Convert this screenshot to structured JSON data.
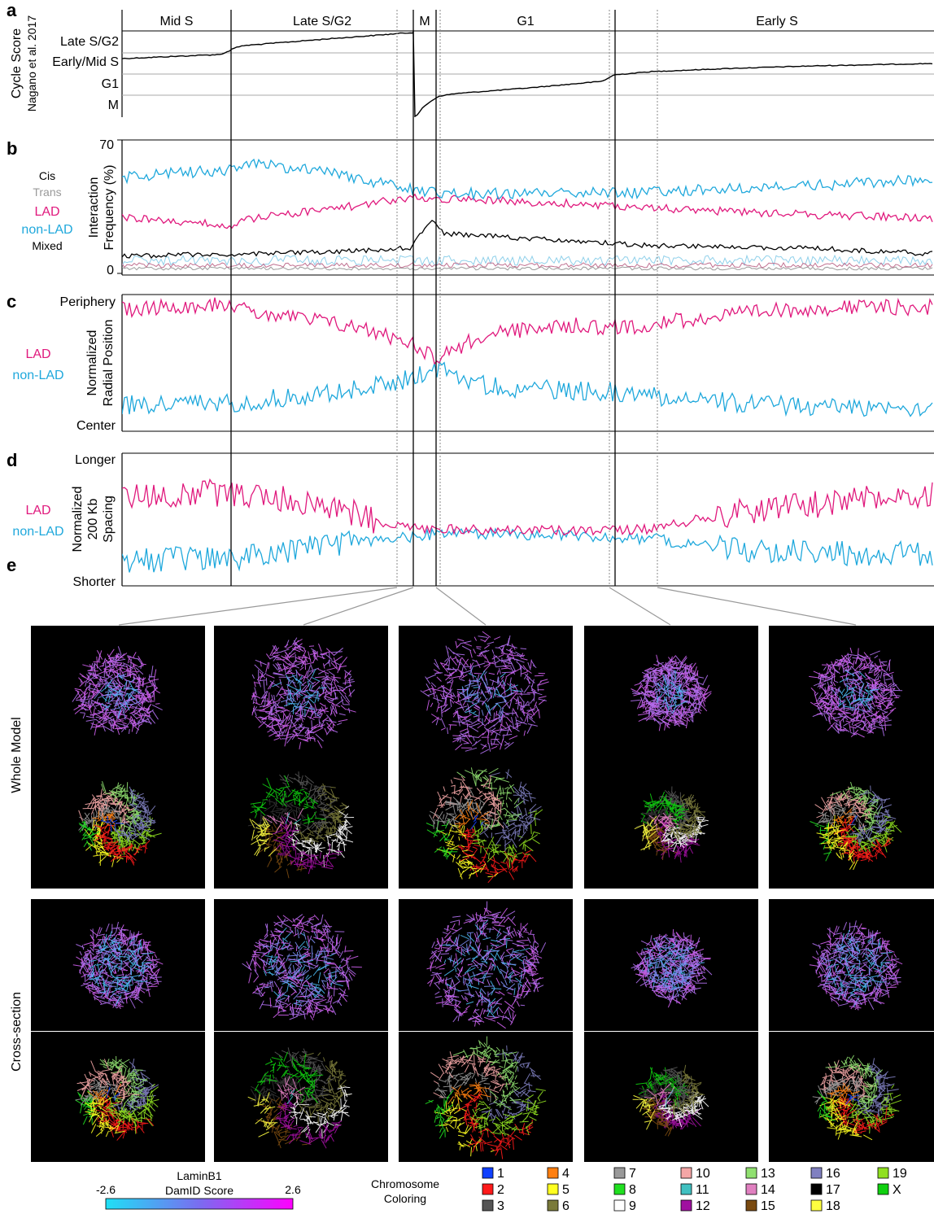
{
  "figure": {
    "panel_letters": [
      "a",
      "b",
      "c",
      "d",
      "e"
    ],
    "phases": [
      "Mid S",
      "Late S/G2",
      "M",
      "G1",
      "Early S"
    ],
    "colors": {
      "lad": "#e0197d",
      "nonlad": "#1fa8dc",
      "mixed": "#000000",
      "cis": "#555555",
      "trans": "#999999"
    }
  },
  "chart_data": [
    {
      "type": "line",
      "panel": "a",
      "ylabel": "Cycle Score",
      "ylabel2": "Nagano et al. 2017",
      "y_ticks": [
        "Late S/G2",
        "Early/Mid S",
        "G1",
        "M"
      ],
      "phases": [
        "Mid S",
        "Late S/G2",
        "M",
        "G1",
        "Early S"
      ]
    },
    {
      "type": "line",
      "panel": "b",
      "ylabel": "Interaction",
      "ylabel2": "Frequency (%)",
      "ylim": [
        0,
        70
      ],
      "y_ticks": [
        "70",
        "0"
      ],
      "series": [
        {
          "name": "Cis",
          "color": "#555555",
          "approx_mean": 3
        },
        {
          "name": "Trans",
          "color": "#999999",
          "approx_mean": 2
        },
        {
          "name": "LAD",
          "color": "#e0197d",
          "approx_range": [
            25,
            45
          ]
        },
        {
          "name": "non-LAD",
          "color": "#1fa8dc",
          "approx_range": [
            38,
            58
          ]
        },
        {
          "name": "Mixed",
          "color": "#000000",
          "approx_range": [
            8,
            22
          ]
        }
      ]
    },
    {
      "type": "line",
      "panel": "c",
      "ylabel": "Normalized",
      "ylabel2": "Radial Position",
      "y_ticks": [
        "Periphery",
        "Center"
      ],
      "series": [
        {
          "name": "LAD",
          "color": "#e0197d"
        },
        {
          "name": "non-LAD",
          "color": "#1fa8dc"
        }
      ]
    },
    {
      "type": "line",
      "panel": "d",
      "ylabel": "Normalized",
      "ylabel2": "200 Kb",
      "ylabel3": "Spacing",
      "y_ticks": [
        "Longer",
        "Shorter"
      ],
      "series": [
        {
          "name": "LAD",
          "color": "#e0197d"
        },
        {
          "name": "non-LAD",
          "color": "#1fa8dc"
        }
      ]
    }
  ],
  "panel_e": {
    "row_labels": [
      "Whole Model",
      "Cross-section"
    ],
    "colorbar": {
      "title1": "LaminB1",
      "title2": "DamID Score",
      "min": "-2.6",
      "max": "2.6",
      "color_low": "#1fe0f5",
      "color_high": "#ff00ff"
    },
    "chromosome_legend": {
      "title1": "Chromosome",
      "title2": "Coloring",
      "items": [
        {
          "label": "1",
          "color": "#1040ff"
        },
        {
          "label": "2",
          "color": "#ff1a1a"
        },
        {
          "label": "3",
          "color": "#555555"
        },
        {
          "label": "4",
          "color": "#ff7f10"
        },
        {
          "label": "5",
          "color": "#ffff20"
        },
        {
          "label": "6",
          "color": "#7a7a3a"
        },
        {
          "label": "7",
          "color": "#999999"
        },
        {
          "label": "8",
          "color": "#20e020"
        },
        {
          "label": "9",
          "color": "#ffffff"
        },
        {
          "label": "10",
          "color": "#f4a6a6"
        },
        {
          "label": "11",
          "color": "#40c0c0"
        },
        {
          "label": "12",
          "color": "#a010a0"
        },
        {
          "label": "13",
          "color": "#90e070"
        },
        {
          "label": "14",
          "color": "#e080c0"
        },
        {
          "label": "15",
          "color": "#7a4a10"
        },
        {
          "label": "16",
          "color": "#8080c0"
        },
        {
          "label": "17",
          "color": "#000000"
        },
        {
          "label": "18",
          "color": "#ffff40"
        },
        {
          "label": "19",
          "color": "#90e020"
        },
        {
          "label": "X",
          "color": "#10d010"
        }
      ]
    }
  }
}
